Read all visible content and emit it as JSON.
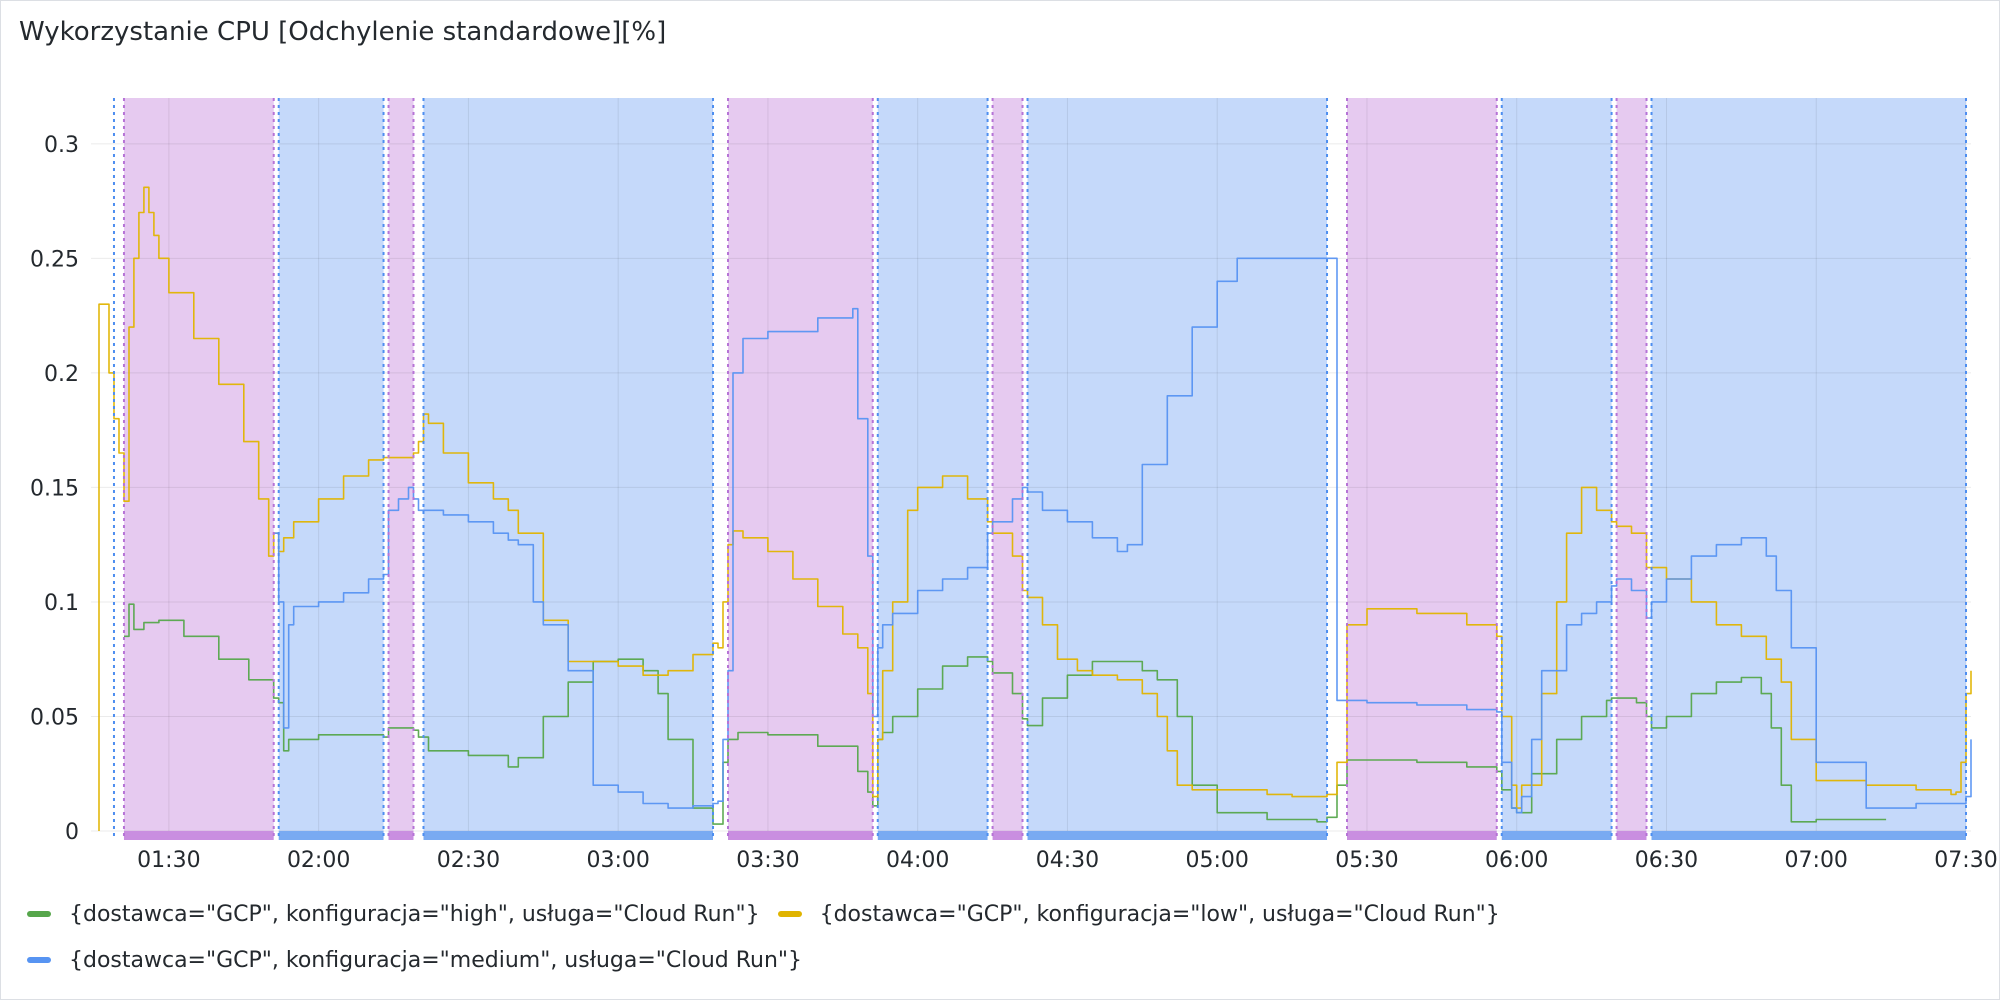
{
  "title": "Wykorzystanie CPU [Odchylenie standardowe][%]",
  "chart_data": {
    "type": "line",
    "title": "Wykorzystanie CPU [Odchylenie standardowe][%]",
    "xlabel": "",
    "ylabel": "",
    "ylim": [
      0,
      0.32
    ],
    "xlim": [
      "01:16",
      "07:31"
    ],
    "grid": true,
    "legend_position": "bottom",
    "y_ticks": [
      {
        "value": 0,
        "label": "0"
      },
      {
        "value": 0.05,
        "label": "0.05"
      },
      {
        "value": 0.1,
        "label": "0.1"
      },
      {
        "value": 0.15,
        "label": "0.15"
      },
      {
        "value": 0.2,
        "label": "0.2"
      },
      {
        "value": 0.25,
        "label": "0.25"
      },
      {
        "value": 0.3,
        "label": "0.3"
      }
    ],
    "x_ticks": [
      "01:30",
      "02:00",
      "02:30",
      "03:00",
      "03:30",
      "04:00",
      "04:30",
      "05:00",
      "05:30",
      "06:00",
      "06:30",
      "07:00",
      "07:30"
    ],
    "regions": [
      {
        "start": "01:21",
        "end": "01:51",
        "kind": "pink"
      },
      {
        "start": "01:52",
        "end": "02:13",
        "kind": "blue"
      },
      {
        "start": "02:14",
        "end": "02:19",
        "kind": "pink"
      },
      {
        "start": "02:21",
        "end": "03:19",
        "kind": "blue"
      },
      {
        "start": "03:22",
        "end": "03:51",
        "kind": "pink"
      },
      {
        "start": "03:52",
        "end": "04:14",
        "kind": "blue"
      },
      {
        "start": "04:15",
        "end": "04:21",
        "kind": "pink"
      },
      {
        "start": "04:22",
        "end": "05:22",
        "kind": "blue"
      },
      {
        "start": "05:26",
        "end": "05:56",
        "kind": "pink"
      },
      {
        "start": "05:57",
        "end": "06:19",
        "kind": "blue"
      },
      {
        "start": "06:20",
        "end": "06:26",
        "kind": "pink"
      },
      {
        "start": "06:27",
        "end": "07:30",
        "kind": "blue"
      }
    ],
    "series": [
      {
        "name": "{dostawca=\"GCP\", konfiguracja=\"high\", usługa=\"Cloud Run\"}",
        "color": "#56a64b",
        "x": [
          "01:21",
          "01:22",
          "01:23",
          "01:25",
          "01:28",
          "01:33",
          "01:40",
          "01:46",
          "01:51",
          "01:52",
          "01:53",
          "01:54",
          "02:00",
          "02:05",
          "02:12",
          "02:13",
          "02:14",
          "02:17",
          "02:19",
          "02:20",
          "02:22",
          "02:30",
          "02:35",
          "02:37",
          "02:38",
          "02:40",
          "02:45",
          "02:50",
          "02:55",
          "03:00",
          "03:05",
          "03:08",
          "03:10",
          "03:15",
          "03:19",
          "03:20",
          "03:21",
          "03:22",
          "03:24",
          "03:30",
          "03:40",
          "03:48",
          "03:50",
          "03:51",
          "03:52",
          "03:53",
          "03:55",
          "04:00",
          "04:05",
          "04:10",
          "04:14",
          "04:15",
          "04:19",
          "04:21",
          "04:22",
          "04:25",
          "04:30",
          "04:35",
          "04:40",
          "04:45",
          "04:48",
          "04:52",
          "04:55",
          "05:00",
          "05:10",
          "05:20",
          "05:22",
          "05:24",
          "05:26",
          "05:30",
          "05:40",
          "05:50",
          "05:56",
          "05:57",
          "05:59",
          "06:00",
          "06:03",
          "06:08",
          "06:13",
          "06:18",
          "06:19",
          "06:20",
          "06:24",
          "06:26",
          "06:27",
          "06:30",
          "06:35",
          "06:40",
          "06:45",
          "06:49",
          "06:51",
          "06:53",
          "06:55",
          "07:00",
          "07:10",
          "07:14"
        ],
        "values": [
          0.085,
          0.099,
          0.088,
          0.091,
          0.092,
          0.085,
          0.075,
          0.066,
          0.058,
          0.056,
          0.035,
          0.04,
          0.042,
          0.042,
          0.042,
          0.041,
          0.045,
          0.045,
          0.044,
          0.041,
          0.035,
          0.033,
          0.033,
          0.033,
          0.028,
          0.032,
          0.05,
          0.065,
          0.074,
          0.075,
          0.07,
          0.06,
          0.04,
          0.01,
          0.003,
          0.003,
          0.03,
          0.04,
          0.043,
          0.042,
          0.037,
          0.026,
          0.017,
          0.011,
          0.04,
          0.043,
          0.05,
          0.062,
          0.072,
          0.076,
          0.074,
          0.069,
          0.06,
          0.049,
          0.046,
          0.058,
          0.068,
          0.074,
          0.074,
          0.07,
          0.066,
          0.05,
          0.02,
          0.008,
          0.005,
          0.004,
          0.006,
          0.02,
          0.031,
          0.031,
          0.03,
          0.028,
          0.026,
          0.018,
          0.01,
          0.008,
          0.025,
          0.04,
          0.05,
          0.057,
          0.058,
          0.058,
          0.056,
          0.05,
          0.045,
          0.05,
          0.06,
          0.065,
          0.067,
          0.06,
          0.045,
          0.02,
          0.004,
          0.005,
          0.005,
          0.005
        ]
      },
      {
        "name": "{dostawca=\"GCP\", konfiguracja=\"low\", usługa=\"Cloud Run\"}",
        "color": "#e0b400",
        "x": [
          "01:16",
          "01:16",
          "01:17",
          "01:18",
          "01:19",
          "01:20",
          "01:21",
          "01:22",
          "01:23",
          "01:24",
          "01:25",
          "01:26",
          "01:27",
          "01:28",
          "01:30",
          "01:35",
          "01:40",
          "01:45",
          "01:48",
          "01:50",
          "01:51",
          "01:52",
          "01:53",
          "01:55",
          "02:00",
          "02:05",
          "02:10",
          "02:13",
          "02:14",
          "02:19",
          "02:20",
          "02:21",
          "02:22",
          "02:25",
          "02:30",
          "02:35",
          "02:38",
          "02:40",
          "02:45",
          "02:50",
          "02:55",
          "03:00",
          "03:05",
          "03:10",
          "03:15",
          "03:19",
          "03:20",
          "03:21",
          "03:22",
          "03:23",
          "03:25",
          "03:30",
          "03:35",
          "03:40",
          "03:45",
          "03:48",
          "03:50",
          "03:51",
          "03:52",
          "03:53",
          "03:55",
          "03:58",
          "04:00",
          "04:05",
          "04:10",
          "04:14",
          "04:15",
          "04:19",
          "04:21",
          "04:22",
          "04:25",
          "04:28",
          "04:32",
          "04:35",
          "04:40",
          "04:45",
          "04:48",
          "04:50",
          "04:52",
          "04:55",
          "05:00",
          "05:10",
          "05:15",
          "05:20",
          "05:22",
          "05:24",
          "05:26",
          "05:30",
          "05:40",
          "05:50",
          "05:56",
          "05:57",
          "05:59",
          "06:00",
          "06:01",
          "06:05",
          "06:08",
          "06:10",
          "06:13",
          "06:16",
          "06:19",
          "06:20",
          "06:23",
          "06:26",
          "06:27",
          "06:30",
          "06:35",
          "06:40",
          "06:45",
          "06:50",
          "06:53",
          "06:55",
          "07:00",
          "07:10",
          "07:20",
          "07:27",
          "07:28",
          "07:29",
          "07:30",
          "07:31"
        ],
        "values": [
          0,
          0.23,
          0.23,
          0.2,
          0.18,
          0.165,
          0.144,
          0.22,
          0.25,
          0.27,
          0.281,
          0.27,
          0.26,
          0.25,
          0.235,
          0.215,
          0.195,
          0.17,
          0.145,
          0.12,
          0.13,
          0.122,
          0.128,
          0.135,
          0.145,
          0.155,
          0.162,
          0.163,
          0.163,
          0.165,
          0.17,
          0.182,
          0.178,
          0.165,
          0.152,
          0.145,
          0.14,
          0.13,
          0.092,
          0.074,
          0.074,
          0.072,
          0.068,
          0.07,
          0.077,
          0.082,
          0.08,
          0.1,
          0.125,
          0.131,
          0.128,
          0.122,
          0.11,
          0.098,
          0.086,
          0.08,
          0.06,
          0.015,
          0.04,
          0.07,
          0.1,
          0.14,
          0.15,
          0.155,
          0.145,
          0.135,
          0.13,
          0.12,
          0.105,
          0.102,
          0.09,
          0.075,
          0.07,
          0.068,
          0.066,
          0.06,
          0.05,
          0.035,
          0.02,
          0.018,
          0.018,
          0.016,
          0.015,
          0.015,
          0.016,
          0.03,
          0.09,
          0.097,
          0.095,
          0.09,
          0.085,
          0.05,
          0.02,
          0.01,
          0.02,
          0.06,
          0.1,
          0.13,
          0.15,
          0.14,
          0.135,
          0.133,
          0.13,
          0.115,
          0.115,
          0.11,
          0.1,
          0.09,
          0.085,
          0.075,
          0.065,
          0.04,
          0.022,
          0.02,
          0.018,
          0.016,
          0.017,
          0.03,
          0.06,
          0.07
        ]
      },
      {
        "name": "{dostawca=\"GCP\", konfiguracja=\"medium\", usługa=\"Cloud Run\"}",
        "color": "#5794f2",
        "x": [
          "01:51",
          "01:52",
          "01:53",
          "01:54",
          "01:55",
          "02:00",
          "02:05",
          "02:10",
          "02:13",
          "02:14",
          "02:16",
          "02:18",
          "02:19",
          "02:20",
          "02:22",
          "02:25",
          "02:30",
          "02:35",
          "02:38",
          "02:40",
          "02:43",
          "02:45",
          "02:50",
          "02:55",
          "03:00",
          "03:05",
          "03:10",
          "03:15",
          "03:19",
          "03:20",
          "03:21",
          "03:22",
          "03:23",
          "03:25",
          "03:30",
          "03:40",
          "03:47",
          "03:48",
          "03:50",
          "03:51",
          "03:52",
          "03:53",
          "03:55",
          "04:00",
          "04:05",
          "04:10",
          "04:14",
          "04:15",
          "04:19",
          "04:21",
          "04:22",
          "04:25",
          "04:30",
          "04:35",
          "04:40",
          "04:42",
          "04:45",
          "04:50",
          "04:55",
          "05:00",
          "05:04",
          "05:24",
          "05:26",
          "05:30",
          "05:40",
          "05:50",
          "05:56",
          "05:57",
          "05:59",
          "06:00",
          "06:01",
          "06:03",
          "06:05",
          "06:10",
          "06:13",
          "06:16",
          "06:19",
          "06:20",
          "06:23",
          "06:26",
          "06:27",
          "06:30",
          "06:35",
          "06:40",
          "06:45",
          "06:50",
          "06:52",
          "06:55",
          "07:00",
          "07:10",
          "07:20",
          "07:30",
          "07:31"
        ],
        "values": [
          0.13,
          0.1,
          0.045,
          0.09,
          0.098,
          0.1,
          0.104,
          0.11,
          0.112,
          0.14,
          0.145,
          0.15,
          0.145,
          0.14,
          0.14,
          0.138,
          0.135,
          0.13,
          0.127,
          0.125,
          0.1,
          0.09,
          0.07,
          0.02,
          0.017,
          0.012,
          0.01,
          0.011,
          0.012,
          0.013,
          0.04,
          0.07,
          0.2,
          0.215,
          0.218,
          0.224,
          0.228,
          0.18,
          0.12,
          0.05,
          0.08,
          0.09,
          0.095,
          0.105,
          0.11,
          0.115,
          0.13,
          0.135,
          0.145,
          0.15,
          0.148,
          0.14,
          0.135,
          0.128,
          0.122,
          0.125,
          0.16,
          0.19,
          0.22,
          0.24,
          0.25,
          0.057,
          0.057,
          0.056,
          0.055,
          0.053,
          0.052,
          0.03,
          0.01,
          0.008,
          0.015,
          0.04,
          0.07,
          0.09,
          0.095,
          0.1,
          0.107,
          0.11,
          0.105,
          0.093,
          0.1,
          0.11,
          0.12,
          0.125,
          0.128,
          0.12,
          0.105,
          0.08,
          0.03,
          0.01,
          0.012,
          0.015,
          0.04
        ]
      }
    ]
  }
}
